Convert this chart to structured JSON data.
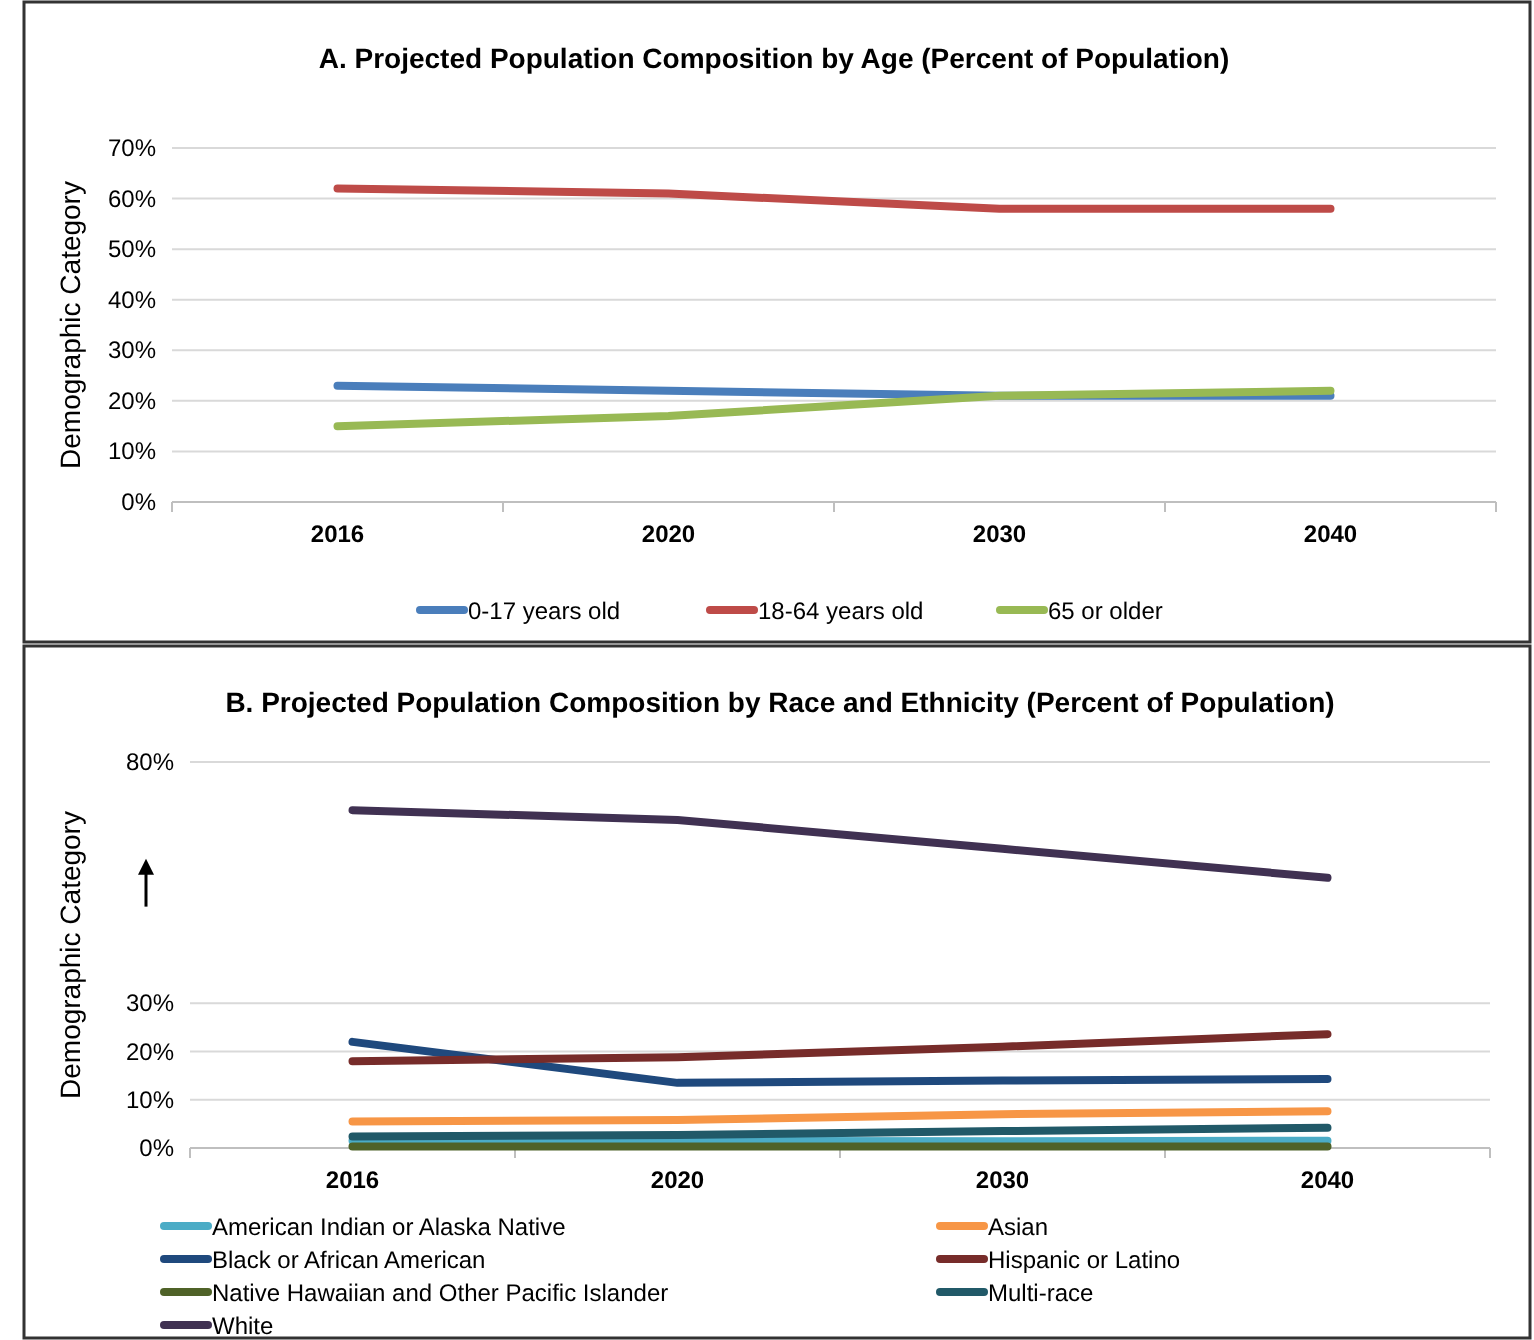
{
  "chart_data": [
    {
      "type": "line",
      "title": "A. Projected Population Composition by Age (Percent of Population)",
      "ylabel": "Demographic Category",
      "categories": [
        "2016",
        "2020",
        "2030",
        "2040"
      ],
      "ylim": [
        0,
        70
      ],
      "yticks": [
        {
          "value": 0,
          "label": "0%"
        },
        {
          "value": 10,
          "label": "10%"
        },
        {
          "value": 20,
          "label": "20%"
        },
        {
          "value": 30,
          "label": "30%"
        },
        {
          "value": 40,
          "label": "40%"
        },
        {
          "value": 50,
          "label": "50%"
        },
        {
          "value": 60,
          "label": "60%"
        },
        {
          "value": 70,
          "label": "70%"
        }
      ],
      "grid": "y",
      "legend": "bottom",
      "marker": "none",
      "line_style": "solid",
      "series": [
        {
          "name": "0-17 years old",
          "color": "#4a7ebb",
          "values": [
            23,
            22,
            21,
            21
          ]
        },
        {
          "name": "18-64 years old",
          "color": "#be4b48",
          "values": [
            62,
            61,
            58,
            58
          ]
        },
        {
          "name": "65 or older",
          "color": "#98b954",
          "values": [
            15,
            17,
            21,
            22
          ]
        }
      ]
    },
    {
      "type": "line",
      "title": "B. Projected Population Composition by Race and Ethnicity (Percent of Population)",
      "ylabel": "Demographic Category",
      "categories": [
        "2016",
        "2020",
        "2030",
        "2040"
      ],
      "ylim": [
        0,
        80
      ],
      "yticks": [
        {
          "value": 0,
          "label": "0%"
        },
        {
          "value": 10,
          "label": "10%"
        },
        {
          "value": 20,
          "label": "20%"
        },
        {
          "value": 30,
          "label": "30%"
        },
        {
          "value": 80,
          "label": "80%"
        }
      ],
      "grid": "y",
      "legend": "bottom",
      "marker": "none",
      "line_style": "solid",
      "series": [
        {
          "name": "American Indian or Alaska Native",
          "color": "#4bacc6",
          "values": [
            1.5,
            1.5,
            1.4,
            1.5
          ]
        },
        {
          "name": "Asian",
          "color": "#f79646",
          "values": [
            5.5,
            5.8,
            7,
            7.6
          ]
        },
        {
          "name": "Black or African American",
          "color": "#1f497d",
          "values": [
            22,
            13.5,
            14,
            14.3
          ]
        },
        {
          "name": "Hispanic or Latino",
          "color": "#772c2a",
          "values": [
            18,
            18.8,
            21,
            23.6
          ]
        },
        {
          "name": "Native Hawaiian and Other Pacific Islander",
          "color": "#4f6228",
          "values": [
            0.3,
            0.3,
            0.3,
            0.3
          ]
        },
        {
          "name": "Multi-race",
          "color": "#215968",
          "values": [
            2.4,
            2.7,
            3.5,
            4.2
          ]
        },
        {
          "name": "White",
          "color": "#403152",
          "values": [
            70,
            68,
            62,
            56
          ]
        }
      ]
    }
  ]
}
